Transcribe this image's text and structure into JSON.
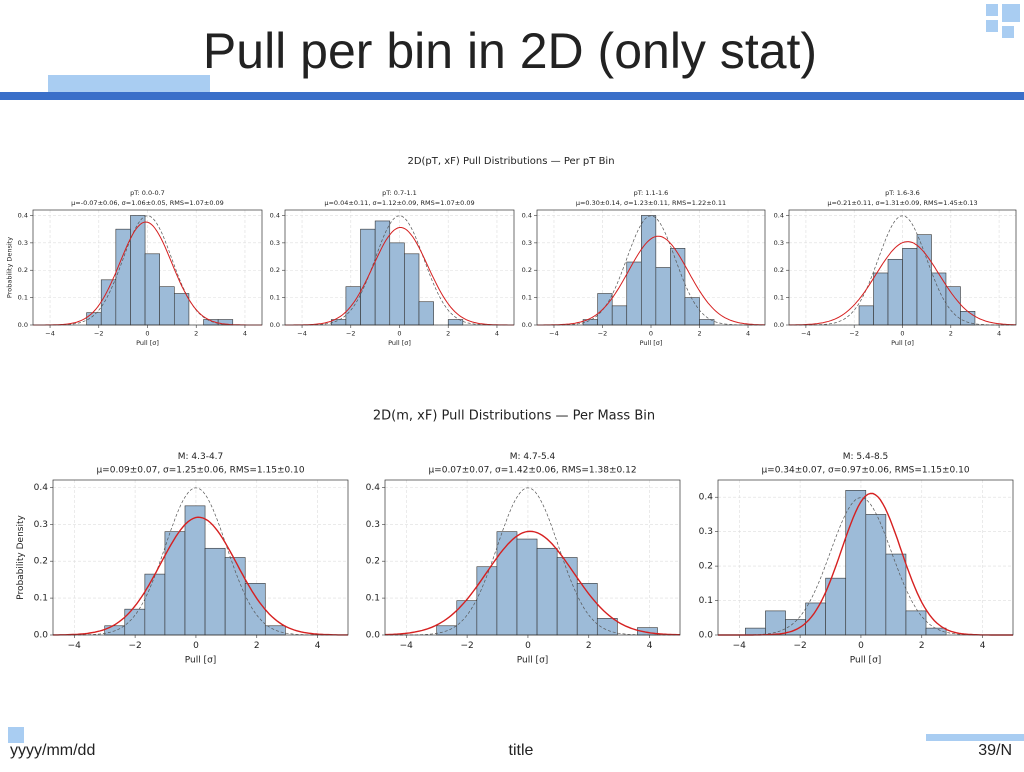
{
  "title": "Pull per bin in 2D (only stat)",
  "section_titles": [
    "2D(pT, xF) Pull Distributions — Per pT Bin",
    "2D(m, xF) Pull Distributions — Per Mass Bin"
  ],
  "footer": {
    "date": "yyyy/mm/dd",
    "title": "title",
    "page": "39/N"
  },
  "chart_data": [
    {
      "type": "histogram",
      "title": "pT: 0.0-0.7",
      "subtitle": "μ=-0.07±0.06,  σ=1.06±0.05,  RMS=1.07±0.09",
      "xlabel": "Pull [σ]",
      "ylabel": "Probability Density",
      "bins": [
        -2.5,
        -1.9,
        -1.3,
        -0.7,
        -0.1,
        0.5,
        1.1,
        1.7,
        2.3,
        2.9,
        3.5
      ],
      "counts": [
        0.045,
        0.165,
        0.35,
        0.4,
        0.26,
        0.14,
        0.115,
        0,
        0.02,
        0.02
      ],
      "fit": {
        "mu": -0.07,
        "sigma": 1.06
      },
      "color": "#9dbbd8",
      "fit_color": "#d62020",
      "xlim": [
        -4.7,
        4.7
      ],
      "ylim": [
        0,
        0.42
      ],
      "xticks": [
        -4,
        -2,
        0,
        2,
        4
      ],
      "yticks": [
        {
          "value": 0,
          "label": "0.0"
        },
        0.1,
        0.2,
        0.3,
        0.4
      ],
      "grid": true
    },
    {
      "type": "histogram",
      "title": "pT: 0.7-1.1",
      "subtitle": "μ=0.04±0.11,  σ=1.12±0.09,  RMS=1.07±0.09",
      "xlabel": "Pull [σ]",
      "bins": [
        -2.8,
        -2.2,
        -1.6,
        -1.0,
        -0.4,
        0.2,
        0.8,
        1.4,
        2.0,
        2.6,
        3.2
      ],
      "counts": [
        0.02,
        0.14,
        0.35,
        0.38,
        0.3,
        0.26,
        0.085,
        0,
        0.02,
        0
      ],
      "fit": {
        "mu": 0.04,
        "sigma": 1.12
      },
      "color": "#9dbbd8",
      "fit_color": "#d62020",
      "xlim": [
        -4.7,
        4.7
      ],
      "ylim": [
        0,
        0.42
      ],
      "xticks": [
        -4,
        -2,
        0,
        2,
        4
      ],
      "yticks": [
        {
          "value": 0,
          "label": "0.0"
        },
        0.1,
        0.2,
        0.3,
        0.4
      ],
      "grid": true
    },
    {
      "type": "histogram",
      "title": "pT: 1.1-1.6",
      "subtitle": "μ=0.30±0.14,  σ=1.23±0.11,  RMS=1.22±0.11",
      "xlabel": "Pull [σ]",
      "bins": [
        -2.8,
        -2.2,
        -1.6,
        -1.0,
        -0.4,
        0.2,
        0.8,
        1.4,
        2.0,
        2.6
      ],
      "counts": [
        0.02,
        0.115,
        0.07,
        0.23,
        0.4,
        0.21,
        0.28,
        0.1,
        0.02
      ],
      "fit": {
        "mu": 0.3,
        "sigma": 1.23
      },
      "color": "#9dbbd8",
      "fit_color": "#d62020",
      "xlim": [
        -4.7,
        4.7
      ],
      "ylim": [
        0,
        0.42
      ],
      "xticks": [
        -4,
        -2,
        0,
        2,
        4
      ],
      "yticks": [
        {
          "value": 0,
          "label": "0.0"
        },
        0.1,
        0.2,
        0.3,
        0.4
      ],
      "grid": true
    },
    {
      "type": "histogram",
      "title": "pT: 1.6-3.6",
      "subtitle": "μ=0.21±0.11,  σ=1.31±0.09,  RMS=1.45±0.13",
      "xlabel": "Pull [σ]",
      "bins": [
        -1.8,
        -1.2,
        -0.6,
        0,
        0.6,
        1.2,
        1.8,
        2.4,
        3.0
      ],
      "counts": [
        0.07,
        0.19,
        0.24,
        0.28,
        0.33,
        0.19,
        0.14,
        0.05
      ],
      "fit": {
        "mu": 0.21,
        "sigma": 1.31
      },
      "color": "#9dbbd8",
      "fit_color": "#d62020",
      "xlim": [
        -4.7,
        4.7
      ],
      "ylim": [
        0,
        0.42
      ],
      "xticks": [
        -4,
        -2,
        0,
        2,
        4
      ],
      "yticks": [
        {
          "value": 0,
          "label": "0.0"
        },
        0.1,
        0.2,
        0.3,
        0.4
      ],
      "grid": true
    },
    {
      "type": "histogram",
      "title": "M: 4.3-4.7",
      "subtitle": "μ=0.09±0.07,  σ=1.25±0.06,  RMS=1.15±0.10",
      "xlabel": "Pull [σ]",
      "ylabel": "Probability Density",
      "bins": [
        -3.0,
        -2.34,
        -1.68,
        -1.02,
        -0.36,
        0.3,
        0.96,
        1.62,
        2.28,
        2.94
      ],
      "counts": [
        0.025,
        0.07,
        0.165,
        0.28,
        0.35,
        0.235,
        0.21,
        0.14,
        0.025
      ],
      "fit": {
        "mu": 0.09,
        "sigma": 1.25
      },
      "color": "#9dbbd8",
      "fit_color": "#d62020",
      "xlim": [
        -4.7,
        5.0
      ],
      "ylim": [
        0,
        0.42
      ],
      "xticks": [
        -4,
        -2,
        0,
        2,
        4
      ],
      "yticks": [
        {
          "value": 0,
          "label": "0.0"
        },
        0.1,
        0.2,
        0.3,
        0.4
      ],
      "grid": true
    },
    {
      "type": "histogram",
      "title": "M: 4.7-5.4",
      "subtitle": "μ=0.07±0.07,  σ=1.42±0.06,  RMS=1.38±0.12",
      "xlabel": "Pull [σ]",
      "bins": [
        -3.0,
        -2.34,
        -1.68,
        -1.02,
        -0.36,
        0.3,
        0.96,
        1.62,
        2.28,
        2.94,
        3.6,
        4.26
      ],
      "counts": [
        0.025,
        0.093,
        0.185,
        0.28,
        0.26,
        0.235,
        0.21,
        0.14,
        0.045,
        0,
        0.02
      ],
      "fit": {
        "mu": 0.07,
        "sigma": 1.42
      },
      "color": "#9dbbd8",
      "fit_color": "#d62020",
      "xlim": [
        -4.7,
        5.0
      ],
      "ylim": [
        0,
        0.42
      ],
      "xticks": [
        -4,
        -2,
        0,
        2,
        4
      ],
      "yticks": [
        {
          "value": 0,
          "label": "0.0"
        },
        0.1,
        0.2,
        0.3,
        0.4
      ],
      "grid": true
    },
    {
      "type": "histogram",
      "title": "M: 5.4-8.5",
      "subtitle": "μ=0.34±0.07,  σ=0.97±0.06,  RMS=1.15±0.10",
      "xlabel": "Pull [σ]",
      "bins": [
        -3.8,
        -3.14,
        -2.48,
        -1.82,
        -1.16,
        -0.5,
        0.16,
        0.82,
        1.48,
        2.14,
        2.8
      ],
      "counts": [
        0.02,
        0.07,
        0.045,
        0.093,
        0.165,
        0.42,
        0.35,
        0.235,
        0.07,
        0.02
      ],
      "fit": {
        "mu": 0.34,
        "sigma": 0.97
      },
      "color": "#9dbbd8",
      "fit_color": "#d62020",
      "xlim": [
        -4.7,
        5.0
      ],
      "ylim": [
        0,
        0.45
      ],
      "xticks": [
        -4,
        -2,
        0,
        2,
        4
      ],
      "yticks": [
        {
          "value": 0,
          "label": "0.0"
        },
        0.1,
        0.2,
        0.3,
        0.4
      ],
      "grid": true
    }
  ]
}
